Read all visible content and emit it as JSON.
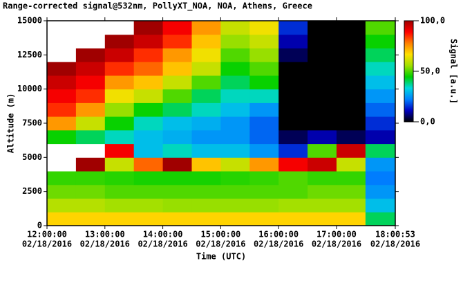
{
  "chart_data": {
    "type": "heatmap",
    "title": "Range-corrected signal@532nm, PollyXT_NOA, NOA, Athens, Greece",
    "x_label": "Time (UTC)",
    "y_label": "Altitude (m)",
    "x": [
      12,
      12.5,
      13,
      13.5,
      14,
      14.5,
      15,
      15.5,
      16,
      16.5,
      17,
      17.5
    ],
    "y": [
      0,
      1000,
      2000,
      3000,
      4000,
      5000,
      6000,
      7000,
      8000,
      9000,
      10000,
      11000,
      12000,
      13000,
      14000
    ],
    "values": [
      [
        68,
        68,
        68,
        68,
        68,
        68,
        68,
        68,
        68,
        68,
        68,
        40
      ],
      [
        58,
        58,
        56,
        56,
        55,
        55,
        55,
        55,
        56,
        56,
        56,
        30
      ],
      [
        52,
        52,
        50,
        50,
        50,
        50,
        50,
        50,
        50,
        52,
        52,
        25
      ],
      [
        48,
        48,
        47,
        46,
        46,
        46,
        47,
        48,
        50,
        48,
        48,
        22
      ],
      [
        105,
        100,
        60,
        80,
        100,
        70,
        60,
        75,
        90,
        95,
        60,
        25
      ],
      [
        110,
        105,
        90,
        30,
        35,
        30,
        30,
        25,
        15,
        50,
        95,
        40
      ],
      [
        45,
        40,
        35,
        30,
        28,
        25,
        25,
        20,
        5,
        10,
        5,
        10
      ],
      [
        75,
        60,
        45,
        35,
        30,
        28,
        25,
        20,
        0,
        0,
        0,
        15
      ],
      [
        85,
        75,
        55,
        45,
        40,
        35,
        30,
        25,
        0,
        0,
        0,
        20
      ],
      [
        90,
        85,
        65,
        60,
        50,
        40,
        35,
        35,
        0,
        0,
        0,
        25
      ],
      [
        95,
        90,
        75,
        70,
        60,
        50,
        40,
        45,
        0,
        0,
        0,
        30
      ],
      [
        100,
        95,
        85,
        80,
        70,
        60,
        45,
        50,
        0,
        0,
        0,
        35
      ],
      [
        105,
        100,
        95,
        85,
        75,
        65,
        50,
        55,
        5,
        0,
        0,
        40
      ],
      [
        110,
        105,
        100,
        95,
        85,
        70,
        55,
        60,
        10,
        0,
        0,
        45
      ],
      [
        110,
        110,
        105,
        100,
        90,
        75,
        60,
        65,
        15,
        0,
        0,
        50
      ]
    ],
    "xlim": [
      12,
      18.0147
    ],
    "ylim": [
      0,
      15000
    ],
    "xticks": [
      {
        "value": 12,
        "label": [
          "12:00:00",
          "02/18/2016"
        ]
      },
      {
        "value": 13,
        "label": [
          "13:00:00",
          "02/18/2016"
        ]
      },
      {
        "value": 14,
        "label": [
          "14:00:00",
          "02/18/2016"
        ]
      },
      {
        "value": 15,
        "label": [
          "15:00:00",
          "02/18/2016"
        ]
      },
      {
        "value": 16,
        "label": [
          "16:00:00",
          "02/18/2016"
        ]
      },
      {
        "value": 17,
        "label": [
          "17:00:00",
          "02/18/2016"
        ]
      },
      {
        "value": 18.0147,
        "label": [
          "18:00:53",
          "02/18/2016"
        ]
      }
    ],
    "yticks": [
      0,
      2500,
      5000,
      7500,
      10000,
      12500,
      15000
    ],
    "colorbar": {
      "label": "Signal [a.u.]",
      "clim": [
        0,
        100
      ],
      "ticks": [
        {
          "value": 0,
          "label": "0,0"
        },
        {
          "value": 50,
          "label": "50,0"
        },
        {
          "value": 100,
          "label": "100,0"
        }
      ],
      "colormap": [
        "#000000",
        "#0000c0",
        "#0080ff",
        "#00d8e0",
        "#00d000",
        "#a0e000",
        "#ffe000",
        "#ff8000",
        "#ff0000",
        "#a00000"
      ],
      "over_color": "#ffffff"
    }
  }
}
